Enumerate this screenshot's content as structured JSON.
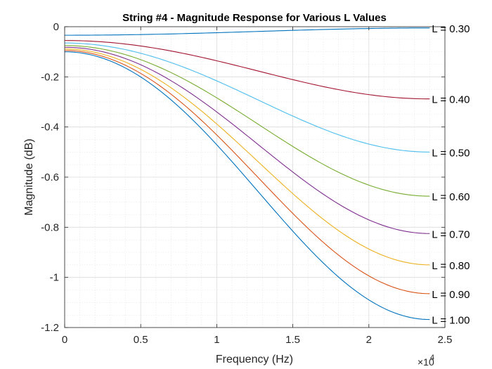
{
  "chart_data": {
    "type": "line",
    "title": "String #4 - Magnitude Response for Various L Values",
    "xlabel": "Frequency (Hz)",
    "ylabel": "Magnitude (dB)",
    "x_exponent_label": "×10",
    "x_exponent_power": "4",
    "xlim": [
      0,
      25000
    ],
    "ylim": [
      -1.2,
      0
    ],
    "xticks": [
      0,
      5000,
      10000,
      15000,
      20000,
      25000
    ],
    "xtick_labels": [
      "0",
      "0.5",
      "1",
      "1.5",
      "2",
      "2.5"
    ],
    "yticks": [
      -1.2,
      -1,
      -0.8,
      -0.6,
      -0.4,
      -0.2,
      0
    ],
    "ytick_labels": [
      "-1.2",
      "-1",
      "-0.8",
      "-0.6",
      "-0.4",
      "-0.2",
      "0"
    ],
    "grid": true,
    "minor_grid": true,
    "x": [
      0,
      1000,
      2000,
      3000,
      4000,
      5000,
      6000,
      7000,
      8000,
      9000,
      10000,
      11000,
      12000,
      13000,
      14000,
      15000,
      16000,
      17000,
      18000,
      19000,
      20000,
      21000,
      22000,
      23000,
      24000
    ],
    "series": [
      {
        "label": "L = 0.30",
        "color": "#0072BD",
        "dc": -0.034,
        "end": -0.005
      },
      {
        "label": "L = 0.40",
        "color": "#A2142F",
        "dc": -0.055,
        "end": -0.288
      },
      {
        "label": "L = 0.50",
        "color": "#4DBEEE",
        "dc": -0.065,
        "end": -0.5
      },
      {
        "label": "L = 0.60",
        "color": "#77AC30",
        "dc": -0.075,
        "end": -0.676
      },
      {
        "label": "L = 0.70",
        "color": "#7E2F8E",
        "dc": -0.082,
        "end": -0.825
      },
      {
        "label": "L = 0.80",
        "color": "#EDB120",
        "dc": -0.089,
        "end": -0.95
      },
      {
        "label": "L = 0.90",
        "color": "#D95319",
        "dc": -0.095,
        "end": -1.065
      },
      {
        "label": "L = 1.00",
        "color": "#0072BD",
        "dc": -0.1,
        "end": -1.168
      }
    ]
  }
}
